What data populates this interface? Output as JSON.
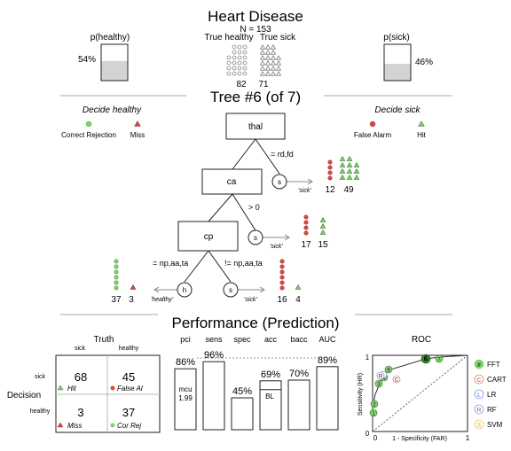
{
  "header": {
    "title": "Heart Disease",
    "n_label": "N = 153",
    "col_healthy": "True healthy",
    "col_sick": "True sick",
    "count_healthy": "82",
    "count_sick": "71",
    "p_healthy_label": "p(healthy)",
    "p_healthy_value": "54%",
    "p_healthy_fraction": 0.54,
    "p_sick_label": "p(sick)",
    "p_sick_value": "46%",
    "p_sick_fraction": 0.46
  },
  "tree": {
    "title": "Tree #6 (of 7)",
    "decide_healthy": "Decide healthy",
    "decide_sick": "Decide sick",
    "legend_correct_rejection": "Correct Rejection",
    "legend_miss": "Miss",
    "legend_false_alarm": "False Alarm",
    "legend_hit": "Hit",
    "node_thal": "thal",
    "node_ca": "ca",
    "node_cp": "cp",
    "edge_thal": "= rd,fd",
    "edge_ca": "> 0",
    "edge_cp_left": "= np,aa,ta",
    "edge_cp_right": "!= np,aa,ta",
    "leaf_s": "s",
    "leaf_h": "h",
    "sick_label": "'sick'",
    "healthy_label": "'healthy'",
    "counts": {
      "thal_fa": "12",
      "thal_hit": "49",
      "ca_fa": "17",
      "ca_hit": "15",
      "cp_cr": "37",
      "cp_miss": "3",
      "cp_fa": "16",
      "cp_hit": "4"
    }
  },
  "performance": {
    "title": "Performance (Prediction)",
    "truth_label": "Truth",
    "truth_sick": "sick",
    "truth_healthy": "healthy",
    "decision_label": "Decision",
    "decision_sick": "sick",
    "decision_healthy": "healthy",
    "hit_value": "68",
    "hit_label": "Hit",
    "fa_value": "45",
    "fa_label": "False Al",
    "miss_value": "3",
    "miss_label": "Miss",
    "cr_value": "37",
    "cr_label": "Cor Rej",
    "metrics": [
      {
        "name": "pci",
        "value": "86%",
        "fraction": 0.86
      },
      {
        "name": "sens",
        "value": "96%",
        "fraction": 0.96
      },
      {
        "name": "spec",
        "value": "45%",
        "fraction": 0.45
      },
      {
        "name": "acc",
        "value": "69%",
        "fraction": 0.69
      },
      {
        "name": "bacc",
        "value": "70%",
        "fraction": 0.7
      },
      {
        "name": "AUC",
        "value": "89%",
        "fraction": 0.89
      }
    ],
    "mcu_label": "mcu",
    "mcu_value": "1.99",
    "bl_label": "BL",
    "roc_title": "ROC",
    "roc_xlabel": "1 - Specificity (FAR)",
    "roc_ylabel": "Sensitivity (HR)",
    "roc_tick_0": "0",
    "roc_tick_1": "1",
    "roc_legend": [
      {
        "symbol": "#",
        "label": "FFT",
        "color": "#7fd36b"
      },
      {
        "symbol": "C",
        "label": "CART",
        "color": "#e0463f"
      },
      {
        "symbol": "L",
        "label": "LR",
        "color": "#4a6fd8"
      },
      {
        "symbol": "R",
        "label": "RF",
        "color": "#8b5cc7"
      },
      {
        "symbol": "S",
        "label": "SVM",
        "color": "#e8a63a"
      }
    ]
  },
  "colors": {
    "hit": "#7fd36b",
    "false_alarm": "#e0463f",
    "correct_rejection": "#7fd36b",
    "miss": "#e0463f",
    "fill_gray": "#d3d3d3"
  }
}
